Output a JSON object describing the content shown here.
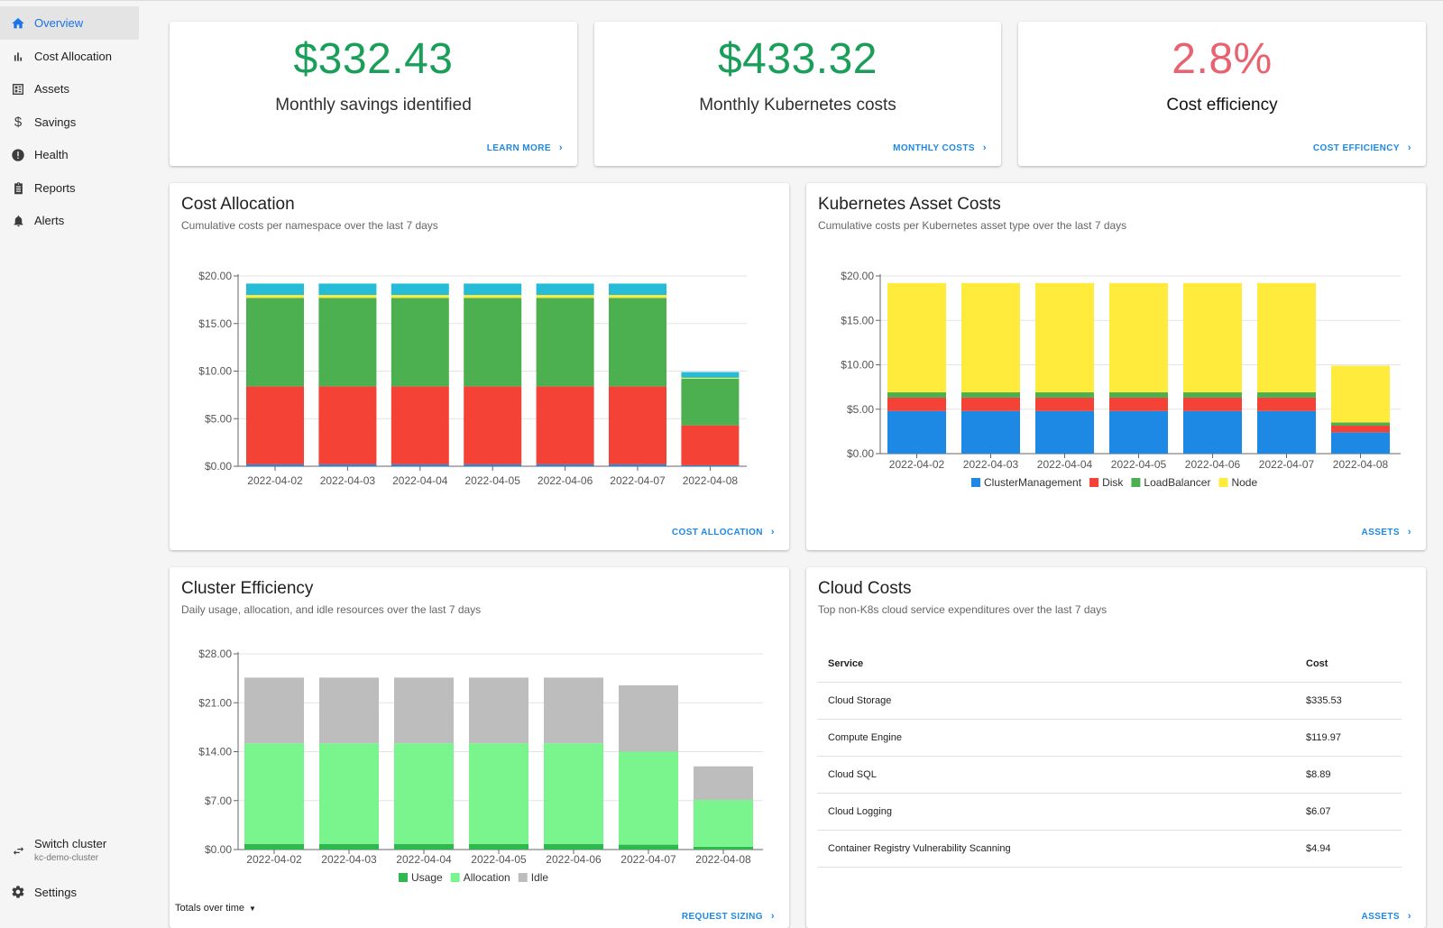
{
  "sidebar": {
    "items": [
      {
        "label": "Overview",
        "icon": "home-icon",
        "active": true
      },
      {
        "label": "Cost Allocation",
        "icon": "bar-chart-icon"
      },
      {
        "label": "Assets",
        "icon": "assets-icon"
      },
      {
        "label": "Savings",
        "icon": "dollar-icon"
      },
      {
        "label": "Health",
        "icon": "alert-circle-icon"
      },
      {
        "label": "Reports",
        "icon": "clipboard-icon"
      },
      {
        "label": "Alerts",
        "icon": "bell-icon"
      }
    ],
    "switch_cluster": {
      "label": "Switch cluster",
      "cluster": "kc-demo-cluster"
    },
    "settings": {
      "label": "Settings"
    }
  },
  "stats": [
    {
      "value": "$332.43",
      "label": "Monthly savings identified",
      "link": "LEARN MORE",
      "color": "#1b9e5a"
    },
    {
      "value": "$433.32",
      "label": "Monthly Kubernetes costs",
      "link": "MONTHLY COSTS",
      "color": "#1b9e5a"
    },
    {
      "value": "2.8%",
      "label": "Cost efficiency",
      "link": "COST EFFICIENCY",
      "color": "#e8636f"
    }
  ],
  "cost_allocation": {
    "title": "Cost Allocation",
    "subtitle": "Cumulative costs per namespace over the last 7 days",
    "link": "COST ALLOCATION"
  },
  "asset_costs": {
    "title": "Kubernetes Asset Costs",
    "subtitle": "Cumulative costs per Kubernetes asset type over the last 7 days",
    "link": "ASSETS"
  },
  "cluster_efficiency": {
    "title": "Cluster Efficiency",
    "subtitle": "Daily usage, allocation, and idle resources over the last 7 days",
    "link": "REQUEST SIZING",
    "totals": "Totals over time"
  },
  "cloud_costs": {
    "title": "Cloud Costs",
    "subtitle": "Top non-K8s cloud service expenditures over the last 7 days",
    "link": "ASSETS",
    "columns": [
      "Service",
      "Cost"
    ],
    "rows": [
      {
        "service": "Cloud Storage",
        "cost": "$335.53"
      },
      {
        "service": "Compute Engine",
        "cost": "$119.97"
      },
      {
        "service": "Cloud SQL",
        "cost": "$8.89"
      },
      {
        "service": "Cloud Logging",
        "cost": "$6.07"
      },
      {
        "service": "Container Registry Vulnerability Scanning",
        "cost": "$4.94"
      }
    ]
  },
  "chart_data": [
    {
      "type": "bar",
      "stacked": true,
      "categories": [
        "2022-04-02",
        "2022-04-03",
        "2022-04-04",
        "2022-04-05",
        "2022-04-06",
        "2022-04-07",
        "2022-04-08"
      ],
      "yticks": [
        "$0.00",
        "$5.00",
        "$10.00",
        "$15.00",
        "$20.00"
      ],
      "ylim": [
        0,
        20
      ],
      "legend": false,
      "series": [
        {
          "color": "#1e88e5",
          "values": [
            0.2,
            0.2,
            0.2,
            0.2,
            0.2,
            0.2,
            0.1
          ]
        },
        {
          "color": "#f44336",
          "values": [
            8.2,
            8.2,
            8.2,
            8.2,
            8.2,
            8.2,
            4.2
          ]
        },
        {
          "color": "#4caf50",
          "values": [
            9.3,
            9.3,
            9.3,
            9.3,
            9.3,
            9.3,
            4.9
          ]
        },
        {
          "color": "#ffeb3b",
          "values": [
            0.3,
            0.3,
            0.3,
            0.3,
            0.3,
            0.3,
            0.1
          ]
        },
        {
          "color": "#26bcd7",
          "values": [
            1.2,
            1.2,
            1.2,
            1.2,
            1.2,
            1.2,
            0.6
          ]
        }
      ]
    },
    {
      "type": "bar",
      "stacked": true,
      "categories": [
        "2022-04-02",
        "2022-04-03",
        "2022-04-04",
        "2022-04-05",
        "2022-04-06",
        "2022-04-07",
        "2022-04-08"
      ],
      "yticks": [
        "$0.00",
        "$5.00",
        "$10.00",
        "$15.00",
        "$20.00"
      ],
      "ylim": [
        0,
        20
      ],
      "legend": "bottom",
      "series": [
        {
          "name": "ClusterManagement",
          "color": "#1e88e5",
          "values": [
            4.8,
            4.8,
            4.8,
            4.8,
            4.8,
            4.8,
            2.4
          ]
        },
        {
          "name": "Disk",
          "color": "#f44336",
          "values": [
            1.5,
            1.5,
            1.5,
            1.5,
            1.5,
            1.5,
            0.75
          ]
        },
        {
          "name": "LoadBalancer",
          "color": "#4caf50",
          "values": [
            0.6,
            0.6,
            0.6,
            0.6,
            0.6,
            0.6,
            0.35
          ]
        },
        {
          "name": "Node",
          "color": "#ffeb3b",
          "values": [
            12.3,
            12.3,
            12.3,
            12.3,
            12.3,
            12.3,
            6.4
          ]
        }
      ]
    },
    {
      "type": "bar",
      "stacked": true,
      "categories": [
        "2022-04-02",
        "2022-04-03",
        "2022-04-04",
        "2022-04-05",
        "2022-04-06",
        "2022-04-07",
        "2022-04-08"
      ],
      "yticks": [
        "$0.00",
        "$7.00",
        "$14.00",
        "$21.00",
        "$28.00"
      ],
      "ylim": [
        0,
        28
      ],
      "legend": "bottom",
      "series": [
        {
          "name": "Usage",
          "color": "#2eb84f",
          "values": [
            0.8,
            0.8,
            0.8,
            0.8,
            0.8,
            0.7,
            0.4
          ]
        },
        {
          "name": "Allocation",
          "color": "#7af48c",
          "values": [
            14.4,
            14.4,
            14.4,
            14.4,
            14.4,
            13.3,
            6.7
          ]
        },
        {
          "name": "Idle",
          "color": "#bdbdbd",
          "values": [
            9.4,
            9.4,
            9.4,
            9.4,
            9.4,
            9.5,
            4.8
          ]
        }
      ]
    }
  ]
}
